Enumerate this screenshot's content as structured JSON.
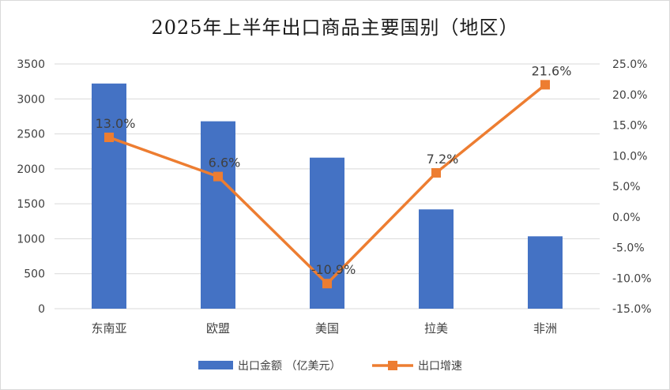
{
  "chart_data": {
    "type": "bar",
    "title": "2025年上半年出口商品主要国别（地区）",
    "categories": [
      "东南亚",
      "欧盟",
      "美国",
      "拉美",
      "非洲"
    ],
    "series": [
      {
        "name": "出口金额 （亿美元）",
        "type": "bar",
        "axis": "left",
        "color": "#4472c4",
        "values": [
          3220,
          2680,
          2160,
          1420,
          1035
        ]
      },
      {
        "name": "出口增速",
        "type": "line",
        "axis": "right",
        "color": "#ed7d31",
        "values": [
          13.0,
          6.6,
          -10.9,
          7.2,
          21.6
        ],
        "data_labels": [
          "13.0%",
          "6.6%",
          "-10.9%",
          "7.2%",
          "21.6%"
        ]
      }
    ],
    "y_left": {
      "ylim": [
        0,
        3500
      ],
      "ticks": [
        "0",
        "500",
        "1000",
        "1500",
        "2000",
        "2500",
        "3000",
        "3500"
      ]
    },
    "y_right": {
      "ylim": [
        -15,
        25
      ],
      "ticks": [
        "-15.0%",
        "-10.0%",
        "-5.0%",
        "0.0%",
        "5.0%",
        "10.0%",
        "15.0%",
        "20.0%",
        "25.0%"
      ]
    },
    "grid": true,
    "legend_position": "bottom"
  }
}
